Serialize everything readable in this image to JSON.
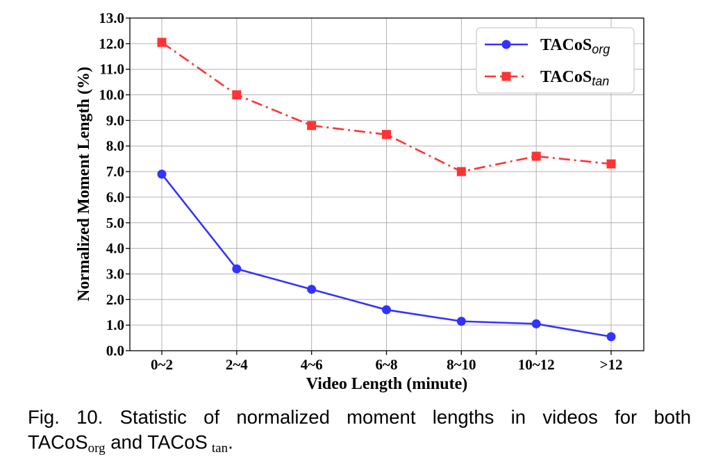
{
  "chart_data": {
    "type": "line",
    "title": "",
    "xlabel": "Video Length (minute)",
    "ylabel": "Normalized Moment Length (%)",
    "categories": [
      "0~2",
      "2~4",
      "4~6",
      "6~8",
      "8~10",
      "10~12",
      ">12"
    ],
    "ylim": [
      0,
      13
    ],
    "yticks": [
      "0.0",
      "1.0",
      "2.0",
      "3.0",
      "4.0",
      "5.0",
      "6.0",
      "7.0",
      "8.0",
      "9.0",
      "10.0",
      "11.0",
      "12.0",
      "13.0"
    ],
    "grid": true,
    "legend_position": "top-right",
    "series": [
      {
        "name_main": "TACoS",
        "name_sub": "org",
        "color": "#3333ff",
        "marker": "circle",
        "linestyle": "solid",
        "values": [
          6.9,
          3.2,
          2.4,
          1.6,
          1.15,
          1.05,
          0.55
        ]
      },
      {
        "name_main": "TACoS",
        "name_sub": "tan",
        "color": "#ff3333",
        "marker": "square",
        "linestyle": "dashdot",
        "values": [
          12.05,
          10.0,
          8.8,
          8.45,
          7.0,
          7.6,
          7.3
        ]
      }
    ]
  },
  "caption": {
    "line1": "Fig. 10. Statistic of normalized moment lengths in videos for both",
    "line2_a": "TACoS",
    "line2_sub1": "org",
    "line2_b": " and TACoS",
    "line2_sub2": "tan",
    "line2_c": "."
  }
}
